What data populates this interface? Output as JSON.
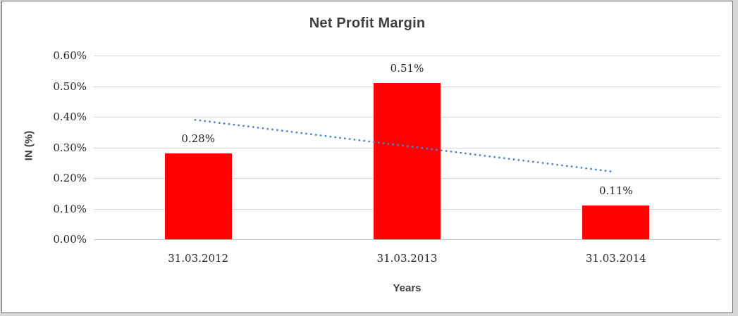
{
  "window": {
    "background_color": "#d8d8d8",
    "frame_border_color": "#6e6e6e",
    "frame_background": "#ffffff"
  },
  "chart_data": {
    "type": "bar",
    "title": "Net Profit Margin",
    "xlabel": "Years",
    "ylabel": "IN (%)",
    "categories": [
      "31.03.2012",
      "31.03.2013",
      "31.03.2014"
    ],
    "values": [
      0.28,
      0.51,
      0.11
    ],
    "data_labels": [
      "0.28%",
      "0.51%",
      "0.11%"
    ],
    "series_name": "Net Profit Margin",
    "ylim": [
      0,
      0.6
    ],
    "ytick_step": 0.1,
    "ytick_labels": [
      "0.00%",
      "0.10%",
      "0.20%",
      "0.30%",
      "0.40%",
      "0.50%",
      "0.60%"
    ],
    "grid": true,
    "legend": "none",
    "bar_color": "#ff0000",
    "gridline_color": "#d9d9d9",
    "axis_line_color": "#bfbfbf",
    "title_color": "#3f3f3f",
    "label_color": "#262626",
    "trendline": {
      "style": "dotted",
      "color": "#4f86c6",
      "start_value": 0.39,
      "end_value": 0.22,
      "x_start_frac": 0.162,
      "x_end_frac": 0.832
    }
  }
}
